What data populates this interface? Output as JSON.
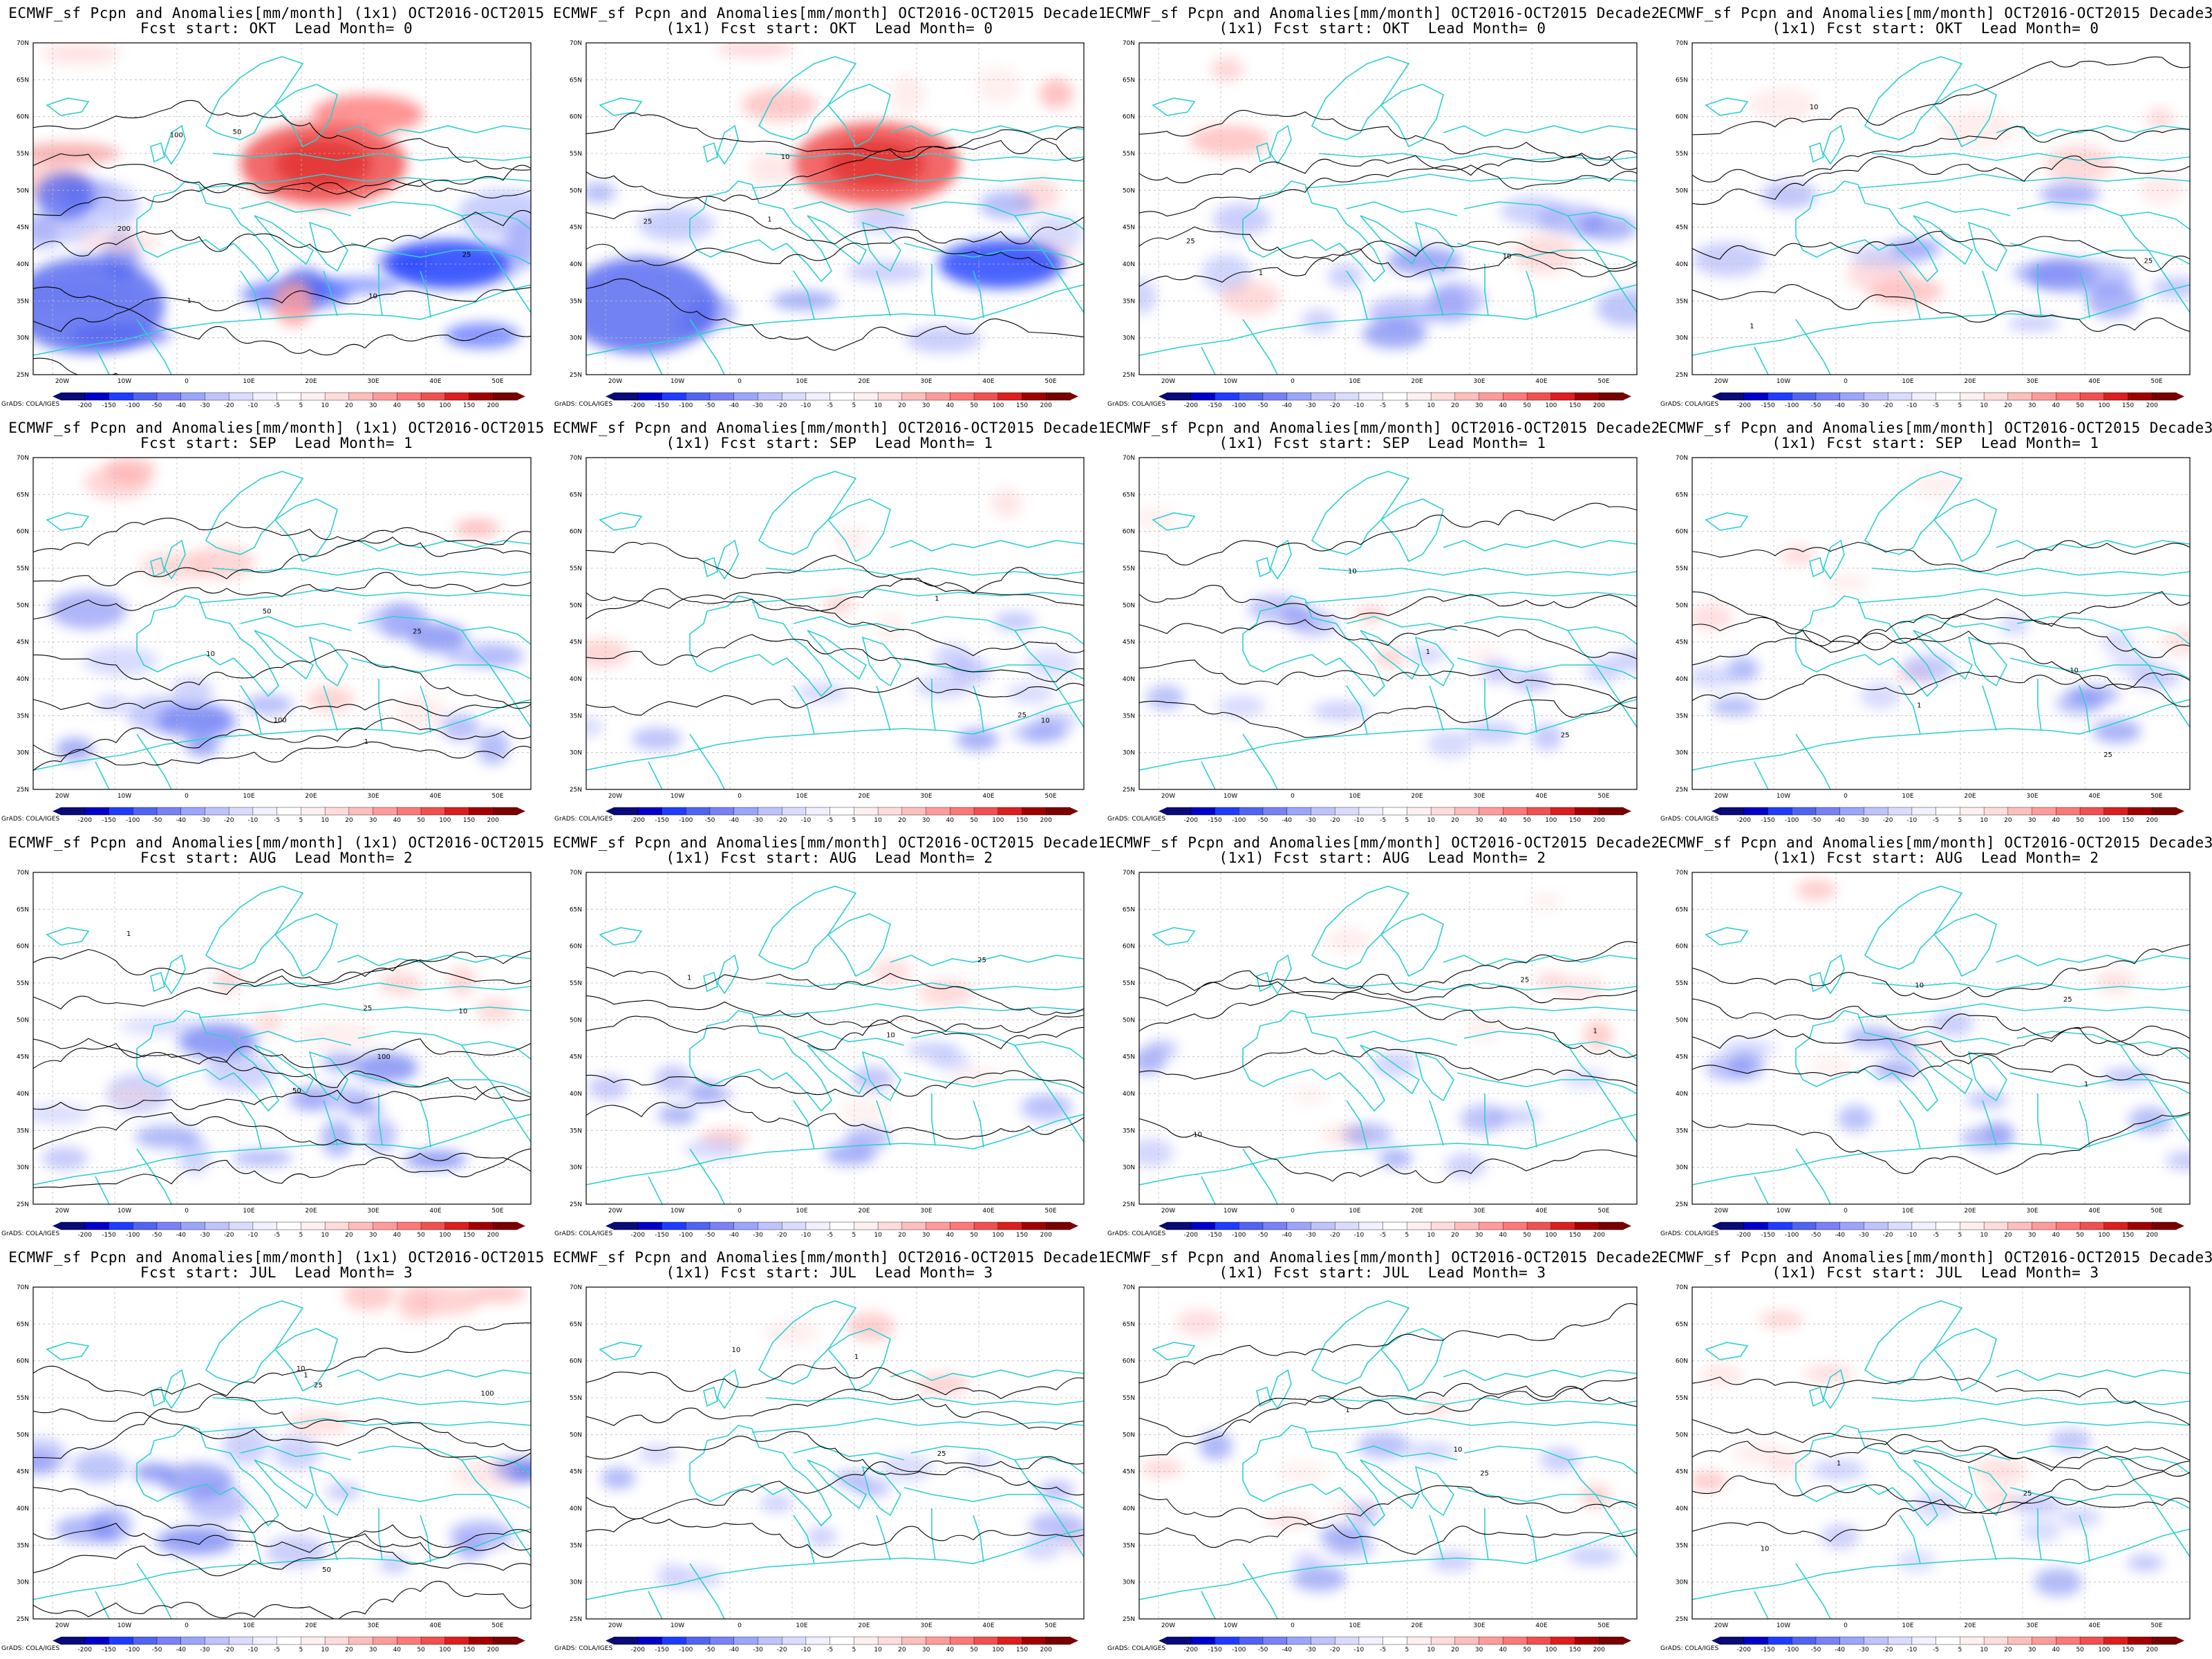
{
  "figure": {
    "colorbar": {
      "labels": [
        "-200",
        "-150",
        "-100",
        "-50",
        "-40",
        "-30",
        "-20",
        "-10",
        "-5",
        "5",
        "10",
        "20",
        "30",
        "40",
        "50",
        "100",
        "150",
        "200"
      ],
      "colors": [
        "#0a0a78",
        "#0000c8",
        "#1e3cff",
        "#5064f0",
        "#7882f5",
        "#9ba5fa",
        "#bec3fc",
        "#dadcfe",
        "#f0f0ff",
        "#ffffff",
        "#fff0f0",
        "#ffdcdc",
        "#ffbebe",
        "#ff9b9b",
        "#ff7878",
        "#f05050",
        "#dc1e1e",
        "#a00000",
        "#780000"
      ]
    },
    "lon_labels": [
      "20W",
      "10W",
      "0",
      "10E",
      "20E",
      "30E",
      "40E",
      "50E"
    ],
    "lat_labels": [
      "70N",
      "65N",
      "60N",
      "55N",
      "50N",
      "45N",
      "40N",
      "35N",
      "30N",
      "25N"
    ],
    "credit": "GrADS: COLA/IGES",
    "colors": {
      "land_outline": "#2ecfcf",
      "contour": "#000000",
      "grid": "#bbbbbb"
    },
    "panels": [
      {
        "title1": "ECMWF_sf Pcpn and Anomalies[mm/month] (1x1) OCT2016-OCT2015",
        "title2": "Fcst start: OKT  Lead Month= 0",
        "contour_labels": [
          "100",
          "50",
          "10",
          "25",
          "1",
          "200"
        ]
      },
      {
        "title1": "ECMWF_sf Pcpn and Anomalies[mm/month] OCT2016-OCT2015 Decade1",
        "title2": "(1x1) Fcst start: OKT  Lead Month= 0",
        "contour_labels": [
          "25",
          "10",
          "1"
        ]
      },
      {
        "title1": "ECMWF_sf Pcpn and Anomalies[mm/month] OCT2016-OCT2015 Decade2",
        "title2": "(1x1) Fcst start: OKT  Lead Month= 0",
        "contour_labels": [
          "25",
          "10",
          "1"
        ]
      },
      {
        "title1": "ECMWF_sf Pcpn and Anomalies[mm/month] OCT2016-OCT2015 Decade3",
        "title2": "(1x1) Fcst start: OKT  Lead Month= 0",
        "contour_labels": [
          "25",
          "10",
          "1"
        ]
      },
      {
        "title1": "ECMWF_sf Pcpn and Anomalies[mm/month] (1x1) OCT2016-OCT2015",
        "title2": "Fcst start: SEP  Lead Month= 1",
        "contour_labels": [
          "100",
          "50",
          "10",
          "25",
          "1"
        ]
      },
      {
        "title1": "ECMWF_sf Pcpn and Anomalies[mm/month] OCT2016-OCT2015 Decade1",
        "title2": "(1x1) Fcst start: SEP  Lead Month= 1",
        "contour_labels": [
          "25",
          "10",
          "1"
        ]
      },
      {
        "title1": "ECMWF_sf Pcpn and Anomalies[mm/month] OCT2016-OCT2015 Decade2",
        "title2": "(1x1) Fcst start: SEP  Lead Month= 1",
        "contour_labels": [
          "25",
          "10",
          "1"
        ]
      },
      {
        "title1": "ECMWF_sf Pcpn and Anomalies[mm/month] OCT2016-OCT2015 Decade3",
        "title2": "(1x1) Fcst start: SEP  Lead Month= 1",
        "contour_labels": [
          "25",
          "10",
          "1"
        ]
      },
      {
        "title1": "ECMWF_sf Pcpn and Anomalies[mm/month] (1x1) OCT2016-OCT2015",
        "title2": "Fcst start: AUG  Lead Month= 2",
        "contour_labels": [
          "100",
          "50",
          "10",
          "25",
          "1"
        ]
      },
      {
        "title1": "ECMWF_sf Pcpn and Anomalies[mm/month] OCT2016-OCT2015 Decade1",
        "title2": "(1x1) Fcst start: AUG  Lead Month= 2",
        "contour_labels": [
          "25",
          "10",
          "1"
        ]
      },
      {
        "title1": "ECMWF_sf Pcpn and Anomalies[mm/month] OCT2016-OCT2015 Decade2",
        "title2": "(1x1) Fcst start: AUG  Lead Month= 2",
        "contour_labels": [
          "25",
          "10",
          "1"
        ]
      },
      {
        "title1": "ECMWF_sf Pcpn and Anomalies[mm/month] OCT2016-OCT2015 Decade3",
        "title2": "(1x1) Fcst start: AUG  Lead Month= 2",
        "contour_labels": [
          "25",
          "10",
          "1"
        ]
      },
      {
        "title1": "ECMWF_sf Pcpn and Anomalies[mm/month] (1x1) OCT2016-OCT2015",
        "title2": "Fcst start: JUL  Lead Month= 3",
        "contour_labels": [
          "100",
          "50",
          "10",
          "25",
          "1"
        ]
      },
      {
        "title1": "ECMWF_sf Pcpn and Anomalies[mm/month] OCT2016-OCT2015 Decade1",
        "title2": "(1x1) Fcst start: JUL  Lead Month= 3",
        "contour_labels": [
          "25",
          "10",
          "1"
        ]
      },
      {
        "title1": "ECMWF_sf Pcpn and Anomalies[mm/month] OCT2016-OCT2015 Decade2",
        "title2": "(1x1) Fcst start: JUL  Lead Month= 3",
        "contour_labels": [
          "25",
          "10",
          "1"
        ]
      },
      {
        "title1": "ECMWF_sf Pcpn and Anomalies[mm/month] OCT2016-OCT2015 Decade3",
        "title2": "(1x1) Fcst start: JUL  Lead Month= 3",
        "contour_labels": [
          "25",
          "10",
          "1"
        ]
      }
    ]
  }
}
